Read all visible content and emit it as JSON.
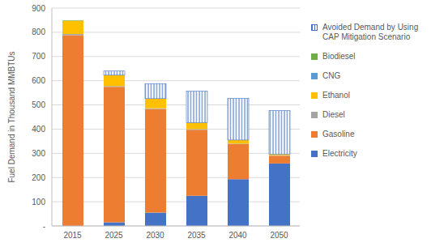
{
  "chart_data": {
    "type": "bar",
    "stacked": true,
    "grid": true,
    "legend": "right",
    "y_label": "Fuel Demand in Thousand MMBTUs",
    "categories": [
      "2015",
      "2025",
      "2030",
      "2035",
      "2040",
      "2050"
    ],
    "ylim": [
      0,
      900
    ],
    "yticks": [
      {
        "value": 0,
        "label": "-"
      },
      100,
      200,
      300,
      400,
      500,
      600,
      700,
      800,
      900
    ],
    "series": [
      {
        "name": "Electricity",
        "color": "#4472c4",
        "values": [
          0,
          15,
          55,
          125,
          193,
          258
        ]
      },
      {
        "name": "Gasoline",
        "color": "#ed7d31",
        "values": [
          788,
          560,
          428,
          272,
          145,
          32
        ]
      },
      {
        "name": "Diesel",
        "color": "#a5a5a5",
        "values": [
          5,
          3,
          3,
          3,
          2,
          2
        ]
      },
      {
        "name": "Ethanol",
        "color": "#ffc000",
        "values": [
          55,
          45,
          40,
          27,
          15,
          5
        ]
      },
      {
        "name": "CNG",
        "color": "#5b9bd5",
        "values": [
          0,
          0,
          0,
          0,
          0,
          0
        ]
      },
      {
        "name": "Biodiesel",
        "color": "#70ad47",
        "values": [
          2,
          0,
          0,
          0,
          0,
          0
        ]
      },
      {
        "name": "Avoided Demand by Using CAP Mitigation Scenario",
        "color": "#4472c4",
        "values": [
          0,
          17,
          62,
          130,
          172,
          180
        ]
      }
    ]
  }
}
